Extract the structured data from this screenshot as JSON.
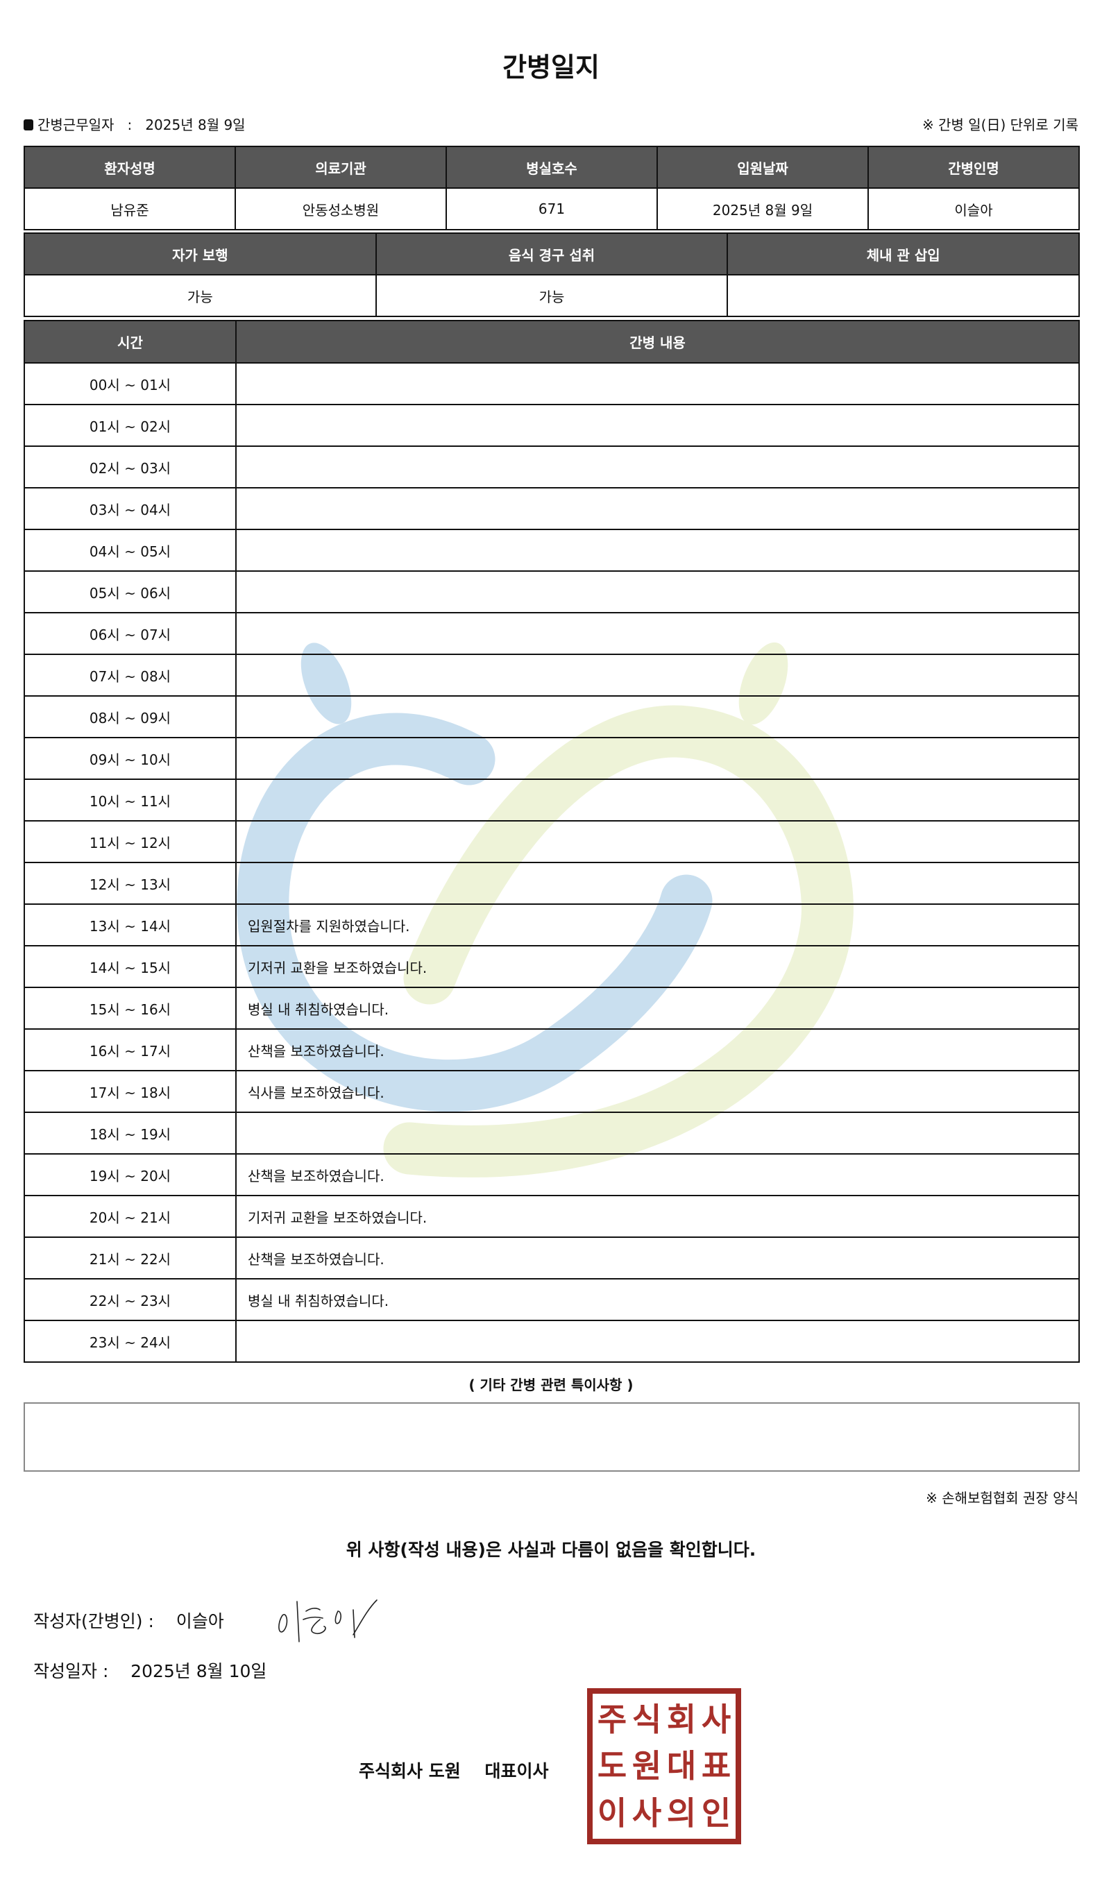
{
  "title": "간병일지",
  "work_date_label": "간병근무일자",
  "work_date_sep": ":",
  "work_date": "2025년 8월 9일",
  "daily_note": "※ 간병 일(日) 단위로 기록",
  "info_table": {
    "headers": [
      "환자성명",
      "의료기관",
      "병실호수",
      "입원날짜",
      "간병인명"
    ],
    "values": [
      "남유준",
      "안동성소병원",
      "671",
      "2025년 8월 9일",
      "이슬아"
    ]
  },
  "status_table": {
    "headers": [
      "자가 보행",
      "음식 경구 섭취",
      "체내 관 삽입"
    ],
    "values": [
      "가능",
      "가능",
      ""
    ]
  },
  "log_table": {
    "headers": [
      "시간",
      "간병 내용"
    ],
    "rows": [
      {
        "time": "00시 ~ 01시",
        "content": ""
      },
      {
        "time": "01시 ~ 02시",
        "content": ""
      },
      {
        "time": "02시 ~ 03시",
        "content": ""
      },
      {
        "time": "03시 ~ 04시",
        "content": ""
      },
      {
        "time": "04시 ~ 05시",
        "content": ""
      },
      {
        "time": "05시 ~ 06시",
        "content": ""
      },
      {
        "time": "06시 ~ 07시",
        "content": ""
      },
      {
        "time": "07시 ~ 08시",
        "content": ""
      },
      {
        "time": "08시 ~ 09시",
        "content": ""
      },
      {
        "time": "09시 ~ 10시",
        "content": ""
      },
      {
        "time": "10시 ~ 11시",
        "content": ""
      },
      {
        "time": "11시 ~ 12시",
        "content": ""
      },
      {
        "time": "12시 ~ 13시",
        "content": ""
      },
      {
        "time": "13시 ~ 14시",
        "content": "입원절차를 지원하였습니다."
      },
      {
        "time": "14시 ~ 15시",
        "content": "기저귀 교환을 보조하였습니다."
      },
      {
        "time": "15시 ~ 16시",
        "content": "병실 내 취침하였습니다."
      },
      {
        "time": "16시 ~ 17시",
        "content": "산책을 보조하였습니다."
      },
      {
        "time": "17시 ~ 18시",
        "content": "식사를 보조하였습니다."
      },
      {
        "time": "18시 ~ 19시",
        "content": ""
      },
      {
        "time": "19시 ~ 20시",
        "content": "산책을 보조하였습니다."
      },
      {
        "time": "20시 ~ 21시",
        "content": "기저귀 교환을 보조하였습니다."
      },
      {
        "time": "21시 ~ 22시",
        "content": "산책을 보조하였습니다."
      },
      {
        "time": "22시 ~ 23시",
        "content": "병실 내 취침하였습니다."
      },
      {
        "time": "23시 ~ 24시",
        "content": ""
      }
    ]
  },
  "notes_title": "( 기타 간병 관련 특이사항 )",
  "notes_value": "",
  "form_note": "※ 손해보험협회 권장 양식",
  "confirmation": "위 사항(작성 내용)은 사실과 다름이 없음을 확인합니다.",
  "writer_label": "작성자(간병인) :",
  "writer_name": "이슬아",
  "written_date_label": "작성일자 :",
  "written_date": "2025년 8월 10일",
  "company": "주식회사 도원",
  "ceo_label": "대표이사",
  "stamp_text": "주식회사도원대표이사의인",
  "colors": {
    "header_bg": "#575757",
    "stamp": "#9e2a24",
    "watermark_blue": "#c9dfef",
    "watermark_green": "#eef3d8"
  }
}
